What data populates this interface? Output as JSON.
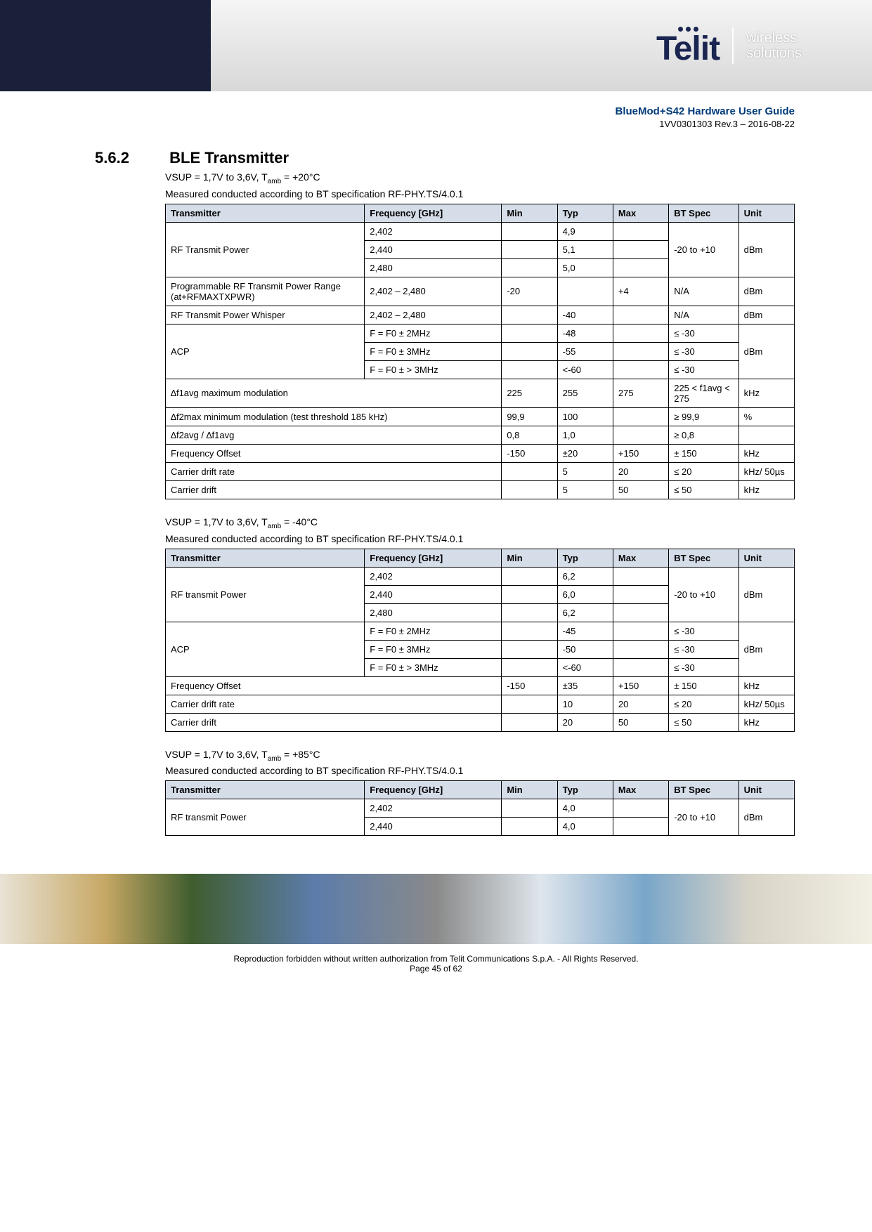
{
  "header": {
    "logo_text": "Telit",
    "logo_tag_l1": "wireless",
    "logo_tag_l2": "solutions",
    "doc_title": "BlueMod+S42 Hardware User Guide",
    "doc_rev": "1VV0301303 Rev.3 – 2016-08-22"
  },
  "section": {
    "number": "5.6.2",
    "title": "BLE Transmitter"
  },
  "blocks": [
    {
      "cond_prefix": "VSUP = 1,7V to 3,6V, T",
      "cond_sub": "amb",
      "cond_suffix": " = +20°C",
      "meas": "Measured conducted according to BT specification RF-PHY.TS/4.0.1",
      "headers": [
        "Transmitter",
        "Frequency [GHz]",
        "Min",
        "Typ",
        "Max",
        "BT Spec",
        "Unit"
      ],
      "rows": [
        {
          "tx": "RF Transmit Power",
          "tx_rowspan": 3,
          "freq": "2,402",
          "min": "",
          "typ": "4,9",
          "max": "",
          "bt": "-20 to +10",
          "bt_rowspan": 3,
          "unit": "dBm",
          "unit_rowspan": 3
        },
        {
          "freq": "2,440",
          "min": "",
          "typ": "5,1",
          "max": ""
        },
        {
          "freq": "2,480",
          "min": "",
          "typ": "5,0",
          "max": ""
        },
        {
          "tx": "Programmable RF Transmit Power Range (at+RFMAXTXPWR)",
          "freq": "2,402 – 2,480",
          "min": "-20",
          "typ": "",
          "max": "+4",
          "bt": "N/A",
          "unit": "dBm"
        },
        {
          "tx": "RF Transmit Power Whisper",
          "freq": "2,402 – 2,480",
          "min": "",
          "typ": "-40",
          "max": "",
          "bt": "N/A",
          "unit": "dBm"
        },
        {
          "tx": "ACP",
          "tx_rowspan": 3,
          "freq": "F = F0 ± 2MHz",
          "min": "",
          "typ": "-48",
          "max": "",
          "bt": "≤ -30",
          "unit": "dBm",
          "unit_rowspan": 3
        },
        {
          "freq": "F = F0 ± 3MHz",
          "min": "",
          "typ": "-55",
          "max": "",
          "bt": "≤ -30"
        },
        {
          "freq": "F = F0 ± > 3MHz",
          "min": "",
          "typ": "<-60",
          "max": "",
          "bt": "≤ -30"
        },
        {
          "tx": "∆f1avg maximum modulation",
          "tx_colspan": 2,
          "min": "225",
          "typ": "255",
          "max": "275",
          "bt": "225 < f1avg < 275",
          "unit": "kHz"
        },
        {
          "tx": "∆f2max minimum modulation (test threshold 185 kHz)",
          "tx_colspan": 2,
          "min": "99,9",
          "typ": "100",
          "max": "",
          "bt": "≥ 99,9",
          "unit": "%"
        },
        {
          "tx": "∆f2avg / ∆f1avg",
          "tx_colspan": 2,
          "min": "0,8",
          "typ": "1,0",
          "max": "",
          "bt": "≥ 0,8",
          "unit": ""
        },
        {
          "tx": "Frequency Offset",
          "tx_colspan": 2,
          "min": "-150",
          "typ": "±20",
          "max": "+150",
          "bt": "± 150",
          "unit": "kHz"
        },
        {
          "tx": "Carrier drift rate",
          "tx_colspan": 2,
          "min": "",
          "typ": "5",
          "max": "20",
          "bt": "≤ 20",
          "unit": "kHz/ 50µs"
        },
        {
          "tx": "Carrier drift",
          "tx_colspan": 2,
          "min": "",
          "typ": "5",
          "max": "50",
          "bt": "≤ 50",
          "unit": "kHz"
        }
      ]
    },
    {
      "cond_prefix": "VSUP = 1,7V to 3,6V, T",
      "cond_sub": "amb",
      "cond_suffix": " = -40°C",
      "meas": "Measured conducted according to BT specification RF-PHY.TS/4.0.1",
      "headers": [
        "Transmitter",
        "Frequency [GHz]",
        "Min",
        "Typ",
        "Max",
        "BT Spec",
        "Unit"
      ],
      "rows": [
        {
          "tx": "RF transmit Power",
          "tx_rowspan": 3,
          "freq": "2,402",
          "min": "",
          "typ": "6,2",
          "max": "",
          "bt": "-20 to +10",
          "bt_rowspan": 3,
          "unit": "dBm",
          "unit_rowspan": 3
        },
        {
          "freq": "2,440",
          "min": "",
          "typ": "6,0",
          "max": ""
        },
        {
          "freq": "2,480",
          "min": "",
          "typ": "6,2",
          "max": ""
        },
        {
          "tx": "ACP",
          "tx_rowspan": 3,
          "freq": "F = F0 ± 2MHz",
          "min": "",
          "typ": "-45",
          "max": "",
          "bt": "≤ -30",
          "unit": "dBm",
          "unit_rowspan": 3
        },
        {
          "freq": "F = F0 ± 3MHz",
          "min": "",
          "typ": "-50",
          "max": "",
          "bt": "≤ -30"
        },
        {
          "freq": "F = F0 ± > 3MHz",
          "min": "",
          "typ": "<-60",
          "max": "",
          "bt": "≤ -30"
        },
        {
          "tx": "Frequency Offset",
          "tx_colspan": 2,
          "min": "-150",
          "typ": "±35",
          "max": "+150",
          "bt": "± 150",
          "unit": "kHz"
        },
        {
          "tx": "Carrier drift rate",
          "tx_colspan": 2,
          "min": "",
          "typ": "10",
          "max": "20",
          "bt": "≤ 20",
          "unit": "kHz/ 50µs"
        },
        {
          "tx": "Carrier drift",
          "tx_colspan": 2,
          "min": "",
          "typ": "20",
          "max": "50",
          "bt": "≤ 50",
          "unit": "kHz"
        }
      ]
    },
    {
      "cond_prefix": "VSUP = 1,7V to 3,6V, T",
      "cond_sub": "amb",
      "cond_suffix": " = +85°C",
      "meas": "Measured conducted according to BT specification RF-PHY.TS/4.0.1",
      "headers": [
        "Transmitter",
        "Frequency [GHz]",
        "Min",
        "Typ",
        "Max",
        "BT Spec",
        "Unit"
      ],
      "rows": [
        {
          "tx": "RF transmit Power",
          "tx_rowspan": 2,
          "freq": "2,402",
          "min": "",
          "typ": "4,0",
          "max": "",
          "bt": "-20 to +10",
          "bt_rowspan": 2,
          "unit": "dBm",
          "unit_rowspan": 2
        },
        {
          "freq": "2,440",
          "min": "",
          "typ": "4,0",
          "max": ""
        }
      ]
    }
  ],
  "footer": {
    "line1": "Reproduction forbidden without written authorization from Telit Communications S.p.A. - All Rights Reserved.",
    "line2": "Page 45 of 62"
  },
  "style": {
    "header_bg": "#d5dde8",
    "border": "#000000",
    "top_left_bg": "#1a1f3a",
    "logo_color": "#1a2550",
    "doc_title_color": "#003a7a"
  }
}
